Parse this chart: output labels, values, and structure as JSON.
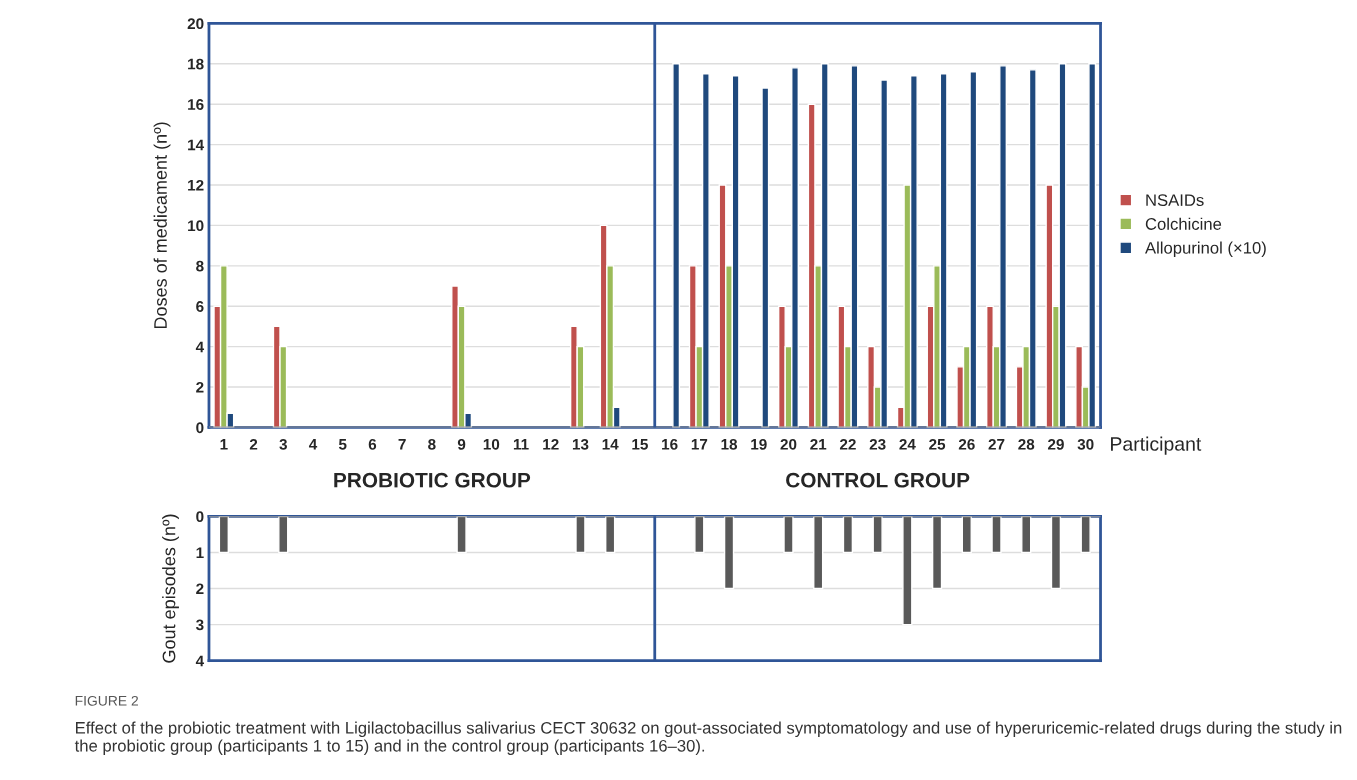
{
  "chart_data": [
    {
      "type": "bar",
      "ylabel": "Doses of medicament (nº)",
      "xlabel": "Participant",
      "x": [
        1,
        2,
        3,
        4,
        5,
        6,
        7,
        8,
        9,
        10,
        11,
        12,
        13,
        14,
        15,
        16,
        17,
        18,
        19,
        20,
        21,
        22,
        23,
        24,
        25,
        26,
        27,
        28,
        29,
        30
      ],
      "xlim": [
        0.5,
        30.5
      ],
      "xticks": [
        1,
        2,
        3,
        4,
        5,
        6,
        7,
        8,
        9,
        10,
        11,
        12,
        13,
        14,
        15,
        16,
        17,
        18,
        19,
        20,
        21,
        22,
        23,
        24,
        25,
        26,
        27,
        28,
        29,
        30
      ],
      "ylim": [
        0,
        20
      ],
      "yticks": [
        0,
        2,
        4,
        6,
        8,
        10,
        12,
        14,
        16,
        18,
        20
      ],
      "grid": "y",
      "legend": "right",
      "series": [
        {
          "name": "NSAIDs",
          "color": "#c0504d",
          "values": [
            6,
            null,
            5,
            null,
            null,
            null,
            null,
            null,
            7,
            null,
            null,
            null,
            5,
            10,
            null,
            null,
            8,
            12,
            null,
            6,
            16,
            6,
            4,
            1,
            6,
            3,
            6,
            3,
            12,
            4
          ]
        },
        {
          "name": "Colchicine",
          "color": "#9bbb59",
          "values": [
            8,
            null,
            4,
            null,
            null,
            null,
            null,
            null,
            6,
            null,
            null,
            null,
            4,
            8,
            null,
            null,
            4,
            8,
            null,
            4,
            8,
            4,
            2,
            12,
            8,
            4,
            4,
            4,
            6,
            2
          ]
        },
        {
          "name": "Allopurinol (×10)",
          "color": "#1f497d",
          "values": [
            0.7,
            null,
            null,
            null,
            null,
            null,
            null,
            null,
            0.7,
            null,
            null,
            null,
            null,
            1,
            null,
            18,
            17.5,
            17.4,
            16.8,
            17.8,
            18,
            17.9,
            17.2,
            17.4,
            17.5,
            17.6,
            17.9,
            17.7,
            18,
            18
          ]
        }
      ],
      "ref_lines": [
        {
          "axis": "x",
          "value": 15.5,
          "color": "#2f5597"
        }
      ],
      "annotations": [
        "PROBIOTIC GROUP",
        "CONTROL GROUP"
      ]
    },
    {
      "type": "bar",
      "ylabel": "Gout episodes (nº)",
      "x": [
        1,
        2,
        3,
        4,
        5,
        6,
        7,
        8,
        9,
        10,
        11,
        12,
        13,
        14,
        15,
        16,
        17,
        18,
        19,
        20,
        21,
        22,
        23,
        24,
        25,
        26,
        27,
        28,
        29,
        30
      ],
      "xlim": [
        0.5,
        30.5
      ],
      "ylim": [
        4,
        0
      ],
      "yticks": [
        0,
        1,
        2,
        3,
        4
      ],
      "grid": "y",
      "tick_labels": "y",
      "series": [
        {
          "color": "#595959",
          "values": [
            1,
            null,
            1,
            null,
            null,
            null,
            null,
            null,
            1,
            null,
            null,
            null,
            1,
            1,
            null,
            null,
            1,
            2,
            null,
            1,
            2,
            1,
            1,
            3,
            2,
            1,
            1,
            1,
            2,
            1
          ]
        }
      ],
      "ref_lines": [
        {
          "axis": "x",
          "value": 15.5,
          "color": "#2f5597"
        }
      ],
      "annotations": [
        "FIGURE 2",
        "Effect of the probiotic treatment with Ligilactobacillus salivarius CECT 30632 on gout-associated symptomatology and use of hyperuricemic-related drugs during the study in the probiotic group (participants 1 to 15) and in the control group (participants 16–30)."
      ]
    }
  ]
}
